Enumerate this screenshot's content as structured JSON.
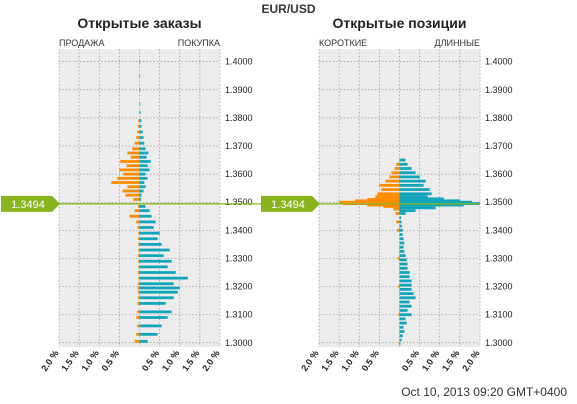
{
  "pair": "EUR/USD",
  "timestamp": "Oct 10, 2013 09:20 GMT+0400",
  "current_price": "1.3494",
  "colors": {
    "sell": "#ff8c00",
    "buy": "#12a6bd",
    "price_marker": "#8ab41e",
    "plot_bg": "#ececec",
    "grid": "#9a9a9a"
  },
  "chart_data": [
    {
      "type": "bar",
      "orientation": "horizontal",
      "title": "Открытые заказы",
      "left_label": "ПРОДАЖА",
      "right_label": "ПОКУПКА",
      "y_ticks": [
        "1.3000",
        "1.3100",
        "1.3200",
        "1.3300",
        "1.3400",
        "1.3500",
        "1.3600",
        "1.3700",
        "1.3800",
        "1.3900",
        "1.4000"
      ],
      "x_ticks": [
        "2.0 %",
        "1.5 %",
        "1.0 %",
        "0.5 %",
        "",
        "0.5 %",
        "1.0 %",
        "1.5 %",
        "2.0 %"
      ],
      "xlim": [
        -2.0,
        2.0
      ],
      "ylim": [
        1.2985,
        1.4045
      ],
      "price_line": 1.3494,
      "series": [
        {
          "name": "ПРОДАЖА",
          "side": "left",
          "points": [
            [
              1.3005,
              0.12
            ],
            [
              1.303,
              0.08
            ],
            [
              1.306,
              0.06
            ],
            [
              1.309,
              0.08
            ],
            [
              1.311,
              0.06
            ],
            [
              1.314,
              0.05
            ],
            [
              1.316,
              0.04
            ],
            [
              1.318,
              0.04
            ],
            [
              1.3195,
              0.05
            ],
            [
              1.321,
              0.04
            ],
            [
              1.323,
              0.03
            ],
            [
              1.325,
              0.04
            ],
            [
              1.327,
              0.03
            ],
            [
              1.329,
              0.03
            ],
            [
              1.331,
              0.04
            ],
            [
              1.333,
              0.03
            ],
            [
              1.335,
              0.03
            ],
            [
              1.337,
              0.04
            ],
            [
              1.339,
              0.03
            ],
            [
              1.341,
              0.05
            ],
            [
              1.343,
              0.08
            ],
            [
              1.345,
              0.25
            ],
            [
              1.347,
              0.12
            ],
            [
              1.3485,
              0.04
            ],
            [
              1.351,
              0.15
            ],
            [
              1.3525,
              0.35
            ],
            [
              1.354,
              0.42
            ],
            [
              1.3555,
              0.3
            ],
            [
              1.357,
              0.7
            ],
            [
              1.3585,
              0.55
            ],
            [
              1.36,
              0.4
            ],
            [
              1.3615,
              0.5
            ],
            [
              1.363,
              0.32
            ],
            [
              1.3645,
              0.48
            ],
            [
              1.366,
              0.22
            ],
            [
              1.3675,
              0.3
            ],
            [
              1.369,
              0.18
            ],
            [
              1.371,
              0.12
            ],
            [
              1.373,
              0.08
            ],
            [
              1.375,
              0.06
            ],
            [
              1.377,
              0.04
            ],
            [
              1.379,
              0.03
            ]
          ]
        },
        {
          "name": "ПОКУПКА",
          "side": "right",
          "points": [
            [
              1.3005,
              0.2
            ],
            [
              1.303,
              0.45
            ],
            [
              1.306,
              0.55
            ],
            [
              1.309,
              0.7
            ],
            [
              1.311,
              0.8
            ],
            [
              1.314,
              0.65
            ],
            [
              1.316,
              0.85
            ],
            [
              1.318,
              0.95
            ],
            [
              1.3195,
              1.0
            ],
            [
              1.321,
              0.85
            ],
            [
              1.323,
              1.2
            ],
            [
              1.325,
              0.9
            ],
            [
              1.327,
              0.7
            ],
            [
              1.329,
              0.8
            ],
            [
              1.331,
              0.6
            ],
            [
              1.333,
              0.75
            ],
            [
              1.335,
              0.55
            ],
            [
              1.337,
              0.45
            ],
            [
              1.339,
              0.5
            ],
            [
              1.341,
              0.35
            ],
            [
              1.343,
              0.4
            ],
            [
              1.345,
              0.3
            ],
            [
              1.347,
              0.25
            ],
            [
              1.3485,
              0.15
            ],
            [
              1.351,
              0.04
            ],
            [
              1.3525,
              0.05
            ],
            [
              1.354,
              0.1
            ],
            [
              1.3555,
              0.15
            ],
            [
              1.357,
              0.12
            ],
            [
              1.3585,
              0.2
            ],
            [
              1.36,
              0.15
            ],
            [
              1.3615,
              0.25
            ],
            [
              1.363,
              0.2
            ],
            [
              1.3645,
              0.28
            ],
            [
              1.366,
              0.18
            ],
            [
              1.3675,
              0.22
            ],
            [
              1.369,
              0.15
            ],
            [
              1.371,
              0.12
            ],
            [
              1.373,
              0.1
            ],
            [
              1.375,
              0.08
            ],
            [
              1.377,
              0.05
            ],
            [
              1.379,
              0.05
            ],
            [
              1.382,
              0.03
            ],
            [
              1.385,
              0.02
            ],
            [
              1.39,
              0.02
            ],
            [
              1.395,
              0.01
            ],
            [
              1.4,
              0.01
            ]
          ]
        }
      ]
    },
    {
      "type": "bar",
      "orientation": "horizontal",
      "title": "Открытые позиции",
      "left_label": "КОРОТКИЕ",
      "right_label": "ДЛИННЫЕ",
      "y_ticks": [
        "1.3000",
        "1.3100",
        "1.3200",
        "1.3300",
        "1.3400",
        "1.3500",
        "1.3600",
        "1.3700",
        "1.3800",
        "1.3900",
        "1.4000"
      ],
      "x_ticks": [
        "2.0 %",
        "1.5 %",
        "1.0 %",
        "0.5 %",
        "",
        "0.5 %",
        "1.0 %",
        "1.5 %",
        "2.0 %"
      ],
      "xlim": [
        -2.0,
        2.0
      ],
      "ylim": [
        1.2985,
        1.4045
      ],
      "price_line": 1.3494,
      "series": [
        {
          "name": "КОРОТКИЕ",
          "side": "left",
          "points": [
            [
              1.3,
              0.02
            ],
            [
              1.31,
              0.03
            ],
            [
              1.32,
              0.03
            ],
            [
              1.33,
              0.04
            ],
            [
              1.34,
              0.06
            ],
            [
              1.343,
              0.08
            ],
            [
              1.346,
              0.1
            ],
            [
              1.3475,
              0.15
            ],
            [
              1.3485,
              0.4
            ],
            [
              1.349,
              0.8
            ],
            [
              1.3495,
              1.4
            ],
            [
              1.35,
              1.5
            ],
            [
              1.3505,
              1.1
            ],
            [
              1.351,
              0.8
            ],
            [
              1.352,
              0.6
            ],
            [
              1.353,
              0.55
            ],
            [
              1.3545,
              0.45
            ],
            [
              1.356,
              0.5
            ],
            [
              1.3575,
              0.35
            ],
            [
              1.359,
              0.25
            ],
            [
              1.3605,
              0.2
            ],
            [
              1.362,
              0.12
            ],
            [
              1.3635,
              0.08
            ]
          ]
        },
        {
          "name": "ДЛИННЫЕ",
          "side": "right",
          "points": [
            [
              1.2995,
              0.02
            ],
            [
              1.301,
              0.05
            ],
            [
              1.3025,
              0.08
            ],
            [
              1.304,
              0.12
            ],
            [
              1.3055,
              0.1
            ],
            [
              1.307,
              0.18
            ],
            [
              1.3085,
              0.15
            ],
            [
              1.31,
              0.3
            ],
            [
              1.3115,
              0.2
            ],
            [
              1.313,
              0.3
            ],
            [
              1.3145,
              0.25
            ],
            [
              1.316,
              0.4
            ],
            [
              1.3175,
              0.35
            ],
            [
              1.319,
              0.3
            ],
            [
              1.3205,
              0.3
            ],
            [
              1.322,
              0.3
            ],
            [
              1.3235,
              0.25
            ],
            [
              1.325,
              0.25
            ],
            [
              1.3265,
              0.2
            ],
            [
              1.328,
              0.2
            ],
            [
              1.3295,
              0.18
            ],
            [
              1.331,
              0.15
            ],
            [
              1.3325,
              0.12
            ],
            [
              1.334,
              0.1
            ],
            [
              1.3355,
              0.12
            ],
            [
              1.337,
              0.1
            ],
            [
              1.3385,
              0.08
            ],
            [
              1.34,
              0.08
            ],
            [
              1.3415,
              0.06
            ],
            [
              1.343,
              0.05
            ],
            [
              1.3445,
              0.04
            ],
            [
              1.346,
              0.15
            ],
            [
              1.347,
              0.4
            ],
            [
              1.348,
              0.9
            ],
            [
              1.349,
              1.6
            ],
            [
              1.3495,
              2.0
            ],
            [
              1.35,
              1.8
            ],
            [
              1.3505,
              1.5
            ],
            [
              1.3512,
              1.1
            ],
            [
              1.352,
              0.7
            ],
            [
              1.353,
              0.8
            ],
            [
              1.3545,
              0.75
            ],
            [
              1.356,
              0.6
            ],
            [
              1.3575,
              0.65
            ],
            [
              1.359,
              0.5
            ],
            [
              1.3605,
              0.4
            ],
            [
              1.362,
              0.3
            ],
            [
              1.3635,
              0.2
            ],
            [
              1.365,
              0.15
            ]
          ]
        }
      ]
    }
  ]
}
